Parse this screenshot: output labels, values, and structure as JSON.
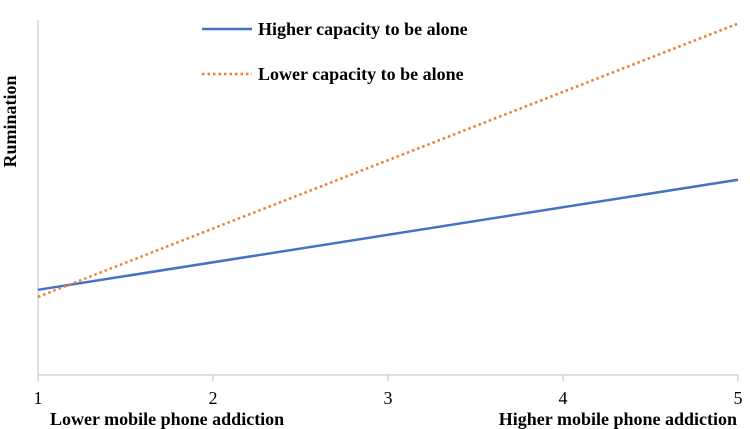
{
  "chart_data": {
    "type": "line",
    "title": "",
    "xlabel": "",
    "ylabel": "Rumination",
    "x": [
      1,
      5
    ],
    "xlim": [
      1,
      5
    ],
    "xticks": [
      "1",
      "2",
      "3",
      "4",
      "5"
    ],
    "ylim": [
      0,
      1
    ],
    "x_low_label": "Lower mobile phone addiction",
    "x_high_label": "Higher mobile phone addiction",
    "grid": false,
    "legend_position": "top",
    "series": [
      {
        "name": "Higher capacity to be alone",
        "values": [
          0.24,
          0.55
        ],
        "color": "#4472C4",
        "style": "solid"
      },
      {
        "name": "Lower capacity to be alone",
        "values": [
          0.22,
          0.99
        ],
        "color": "#ED7D31",
        "style": "dotted"
      }
    ]
  }
}
